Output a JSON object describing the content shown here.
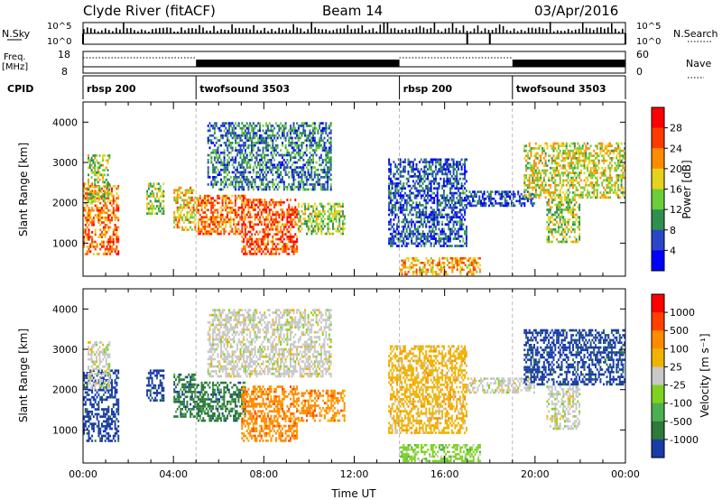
{
  "header": {
    "site": "Clyde River (fitACF)",
    "beam": "Beam 14",
    "date": "03/Apr/2016"
  },
  "top_panels": {
    "nsky_label": "N.Sky",
    "nsky_ticks": [
      "10^5",
      "10^0"
    ],
    "nsearch_label": "N.Search",
    "nsearch_ticks": [
      "10^5",
      "10^0"
    ],
    "freq_label": "Freq.",
    "freq_unit": "[MHz]",
    "freq_ticks": [
      "18",
      "8"
    ],
    "nave_label": "Nave",
    "nave_ticks": [
      "60",
      "0"
    ],
    "cpid_label": "CPID",
    "cpid_segments": [
      {
        "label": "rbsp 200",
        "start": 0,
        "end": 5
      },
      {
        "label": "twofsound 3503",
        "start": 5,
        "end": 14
      },
      {
        "label": "rbsp 200",
        "start": 14,
        "end": 19
      },
      {
        "label": "twofsound 3503",
        "start": 19,
        "end": 24
      }
    ]
  },
  "chart_data": [
    {
      "type": "heatmap",
      "title": "",
      "quantity": "Power",
      "ylabel": "Slant Range [km]",
      "xlabel": "Time UT",
      "x_ticks": [
        "00:00",
        "04:00",
        "08:00",
        "12:00",
        "16:00",
        "20:00",
        "00:00"
      ],
      "xlim_hours": [
        0,
        24
      ],
      "y_ticks": [
        1000,
        2000,
        3000,
        4000
      ],
      "ylim_km": [
        180,
        4500
      ],
      "colorbar": {
        "label": "Power [dB]",
        "ticks": [
          "4",
          "8",
          "12",
          "16",
          "20",
          "24",
          "28"
        ],
        "range": [
          0,
          30
        ],
        "colors": [
          "#0000ff",
          "#2a46c8",
          "#2f8f4f",
          "#6ccd3a",
          "#e6d21a",
          "#ff8c00",
          "#ff3a00",
          "#ff0000"
        ]
      },
      "echo_regions": [
        {
          "t0": 0.0,
          "t1": 1.6,
          "r0": 700,
          "r1": 2500,
          "level": 22
        },
        {
          "t0": 0.2,
          "t1": 1.2,
          "r0": 2000,
          "r1": 3200,
          "level": 14
        },
        {
          "t0": 2.8,
          "t1": 3.6,
          "r0": 1700,
          "r1": 2500,
          "level": 14
        },
        {
          "t0": 4.0,
          "t1": 5.0,
          "r0": 1300,
          "r1": 2400,
          "level": 18
        },
        {
          "t0": 5.0,
          "t1": 7.2,
          "r0": 1200,
          "r1": 2200,
          "level": 22
        },
        {
          "t0": 7.0,
          "t1": 9.5,
          "r0": 700,
          "r1": 2100,
          "level": 24
        },
        {
          "t0": 9.5,
          "t1": 11.6,
          "r0": 1200,
          "r1": 2000,
          "level": 14
        },
        {
          "t0": 5.5,
          "t1": 11.0,
          "r0": 2300,
          "r1": 4000,
          "level": 8
        },
        {
          "t0": 14.0,
          "t1": 17.6,
          "r0": 200,
          "r1": 650,
          "level": 20
        },
        {
          "t0": 13.5,
          "t1": 17.0,
          "r0": 900,
          "r1": 3100,
          "level": 6
        },
        {
          "t0": 17.0,
          "t1": 20.0,
          "r0": 1900,
          "r1": 2300,
          "level": 5
        },
        {
          "t0": 19.5,
          "t1": 24.0,
          "r0": 2100,
          "r1": 3500,
          "level": 16
        },
        {
          "t0": 20.5,
          "t1": 22.0,
          "r0": 1000,
          "r1": 2100,
          "level": 14
        }
      ]
    },
    {
      "type": "heatmap",
      "title": "",
      "quantity": "Velocity",
      "ylabel": "Slant Range [km]",
      "xlabel": "Time UT",
      "x_ticks": [
        "00:00",
        "04:00",
        "08:00",
        "12:00",
        "16:00",
        "20:00",
        "00:00"
      ],
      "xlim_hours": [
        0,
        24
      ],
      "y_ticks": [
        1000,
        2000,
        3000,
        4000
      ],
      "ylim_km": [
        180,
        4500
      ],
      "colorbar": {
        "label": "Velocity [m s⁻¹]",
        "ticks": [
          "1000",
          "500",
          "100",
          "25",
          "-25",
          "-100",
          "-500",
          "-1000"
        ],
        "colors": [
          "#1a3ca8",
          "#2d7a3a",
          "#4caf50",
          "#7ed321",
          "#c8c8c8",
          "#f0b400",
          "#ff8c00",
          "#ff4000",
          "#ff0000"
        ]
      },
      "echo_regions": [
        {
          "t0": 0.0,
          "t1": 1.6,
          "r0": 700,
          "r1": 2500,
          "color_index": 0
        },
        {
          "t0": 0.2,
          "t1": 1.2,
          "r0": 2000,
          "r1": 3200,
          "color_index": 4
        },
        {
          "t0": 2.8,
          "t1": 3.6,
          "r0": 1700,
          "r1": 2500,
          "color_index": 0
        },
        {
          "t0": 4.0,
          "t1": 5.0,
          "r0": 1300,
          "r1": 2400,
          "color_index": 1
        },
        {
          "t0": 5.0,
          "t1": 7.2,
          "r0": 1200,
          "r1": 2200,
          "color_index": 1
        },
        {
          "t0": 7.0,
          "t1": 9.5,
          "r0": 700,
          "r1": 2100,
          "color_index": 6
        },
        {
          "t0": 9.5,
          "t1": 11.6,
          "r0": 1200,
          "r1": 2000,
          "color_index": 6
        },
        {
          "t0": 5.5,
          "t1": 11.0,
          "r0": 2300,
          "r1": 4000,
          "color_index": 4
        },
        {
          "t0": 14.0,
          "t1": 17.6,
          "r0": 200,
          "r1": 650,
          "color_index": 3
        },
        {
          "t0": 13.5,
          "t1": 17.0,
          "r0": 900,
          "r1": 3100,
          "color_index": 5
        },
        {
          "t0": 17.0,
          "t1": 20.0,
          "r0": 1900,
          "r1": 2300,
          "color_index": 4
        },
        {
          "t0": 19.5,
          "t1": 24.0,
          "r0": 2100,
          "r1": 3500,
          "color_index": 0
        },
        {
          "t0": 20.5,
          "t1": 22.0,
          "r0": 1000,
          "r1": 2100,
          "color_index": 4
        }
      ]
    }
  ]
}
